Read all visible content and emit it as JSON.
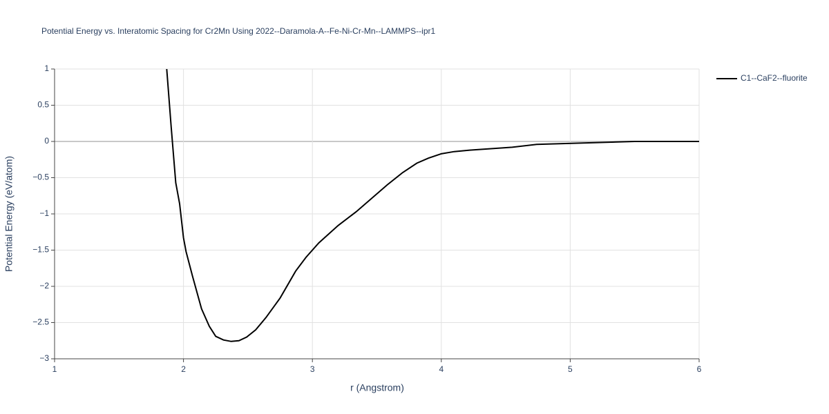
{
  "chart_data": {
    "type": "line",
    "title": "Potential Energy vs. Interatomic Spacing for Cr2Mn Using 2022--Daramola-A--Fe-Ni-Cr-Mn--LAMMPS--ipr1",
    "x_label": "r (Angstrom)",
    "y_label": "Potential Energy (eV/atom)",
    "x": [
      1.87,
      1.905,
      1.94,
      1.97,
      2.0,
      2.02,
      2.07,
      2.14,
      2.2,
      2.25,
      2.31,
      2.37,
      2.43,
      2.49,
      2.56,
      2.64,
      2.75,
      2.87,
      2.95,
      3.05,
      3.2,
      3.34,
      3.58,
      3.7,
      3.81,
      3.9,
      4.0,
      4.1,
      4.22,
      4.55,
      4.74,
      5.5,
      6.0
    ],
    "series": [
      {
        "name": "C1--CaF2--fluorite",
        "color": "#000000",
        "values": [
          1.0,
          0.19,
          -0.57,
          -0.86,
          -1.33,
          -1.52,
          -1.86,
          -2.31,
          -2.55,
          -2.69,
          -2.74,
          -2.76,
          -2.75,
          -2.7,
          -2.6,
          -2.43,
          -2.16,
          -1.79,
          -1.6,
          -1.4,
          -1.16,
          -0.97,
          -0.6,
          -0.43,
          -0.3,
          -0.23,
          -0.17,
          -0.14,
          -0.12,
          -0.08,
          -0.04,
          0,
          0
        ]
      }
    ],
    "xlim": [
      1,
      6
    ],
    "xticks": [
      1,
      2,
      3,
      4,
      5,
      6
    ],
    "ylim": [
      -3,
      1
    ],
    "yticks": [
      1,
      0.5,
      0,
      {
        "value": -0.5,
        "label": "−0.5"
      },
      {
        "value": -1,
        "label": "−1"
      },
      {
        "value": -1.5,
        "label": "−1.5"
      },
      {
        "value": -2,
        "label": "−2"
      },
      {
        "value": -2.5,
        "label": "−2.5"
      },
      {
        "value": -3,
        "label": "−3"
      }
    ],
    "grid": true,
    "legend": "right"
  }
}
